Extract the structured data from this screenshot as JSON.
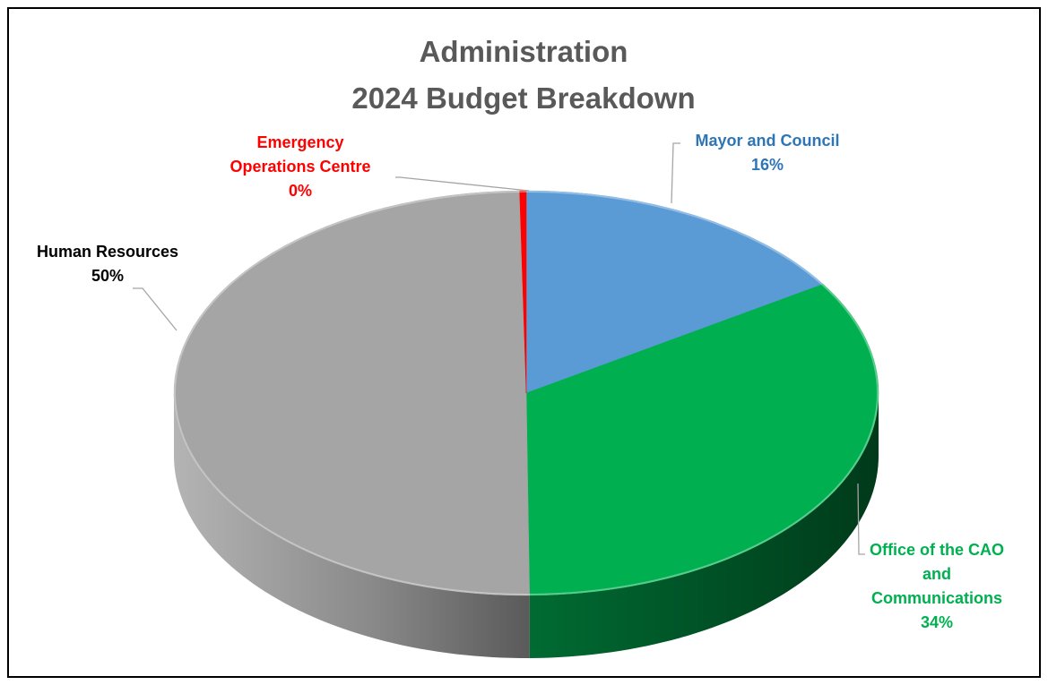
{
  "chart_data": {
    "type": "pie",
    "style": "3d",
    "title": [
      "Administration",
      "2024 Budget Breakdown"
    ],
    "slices": [
      {
        "label_lines": [
          "Mayor and Council"
        ],
        "percent_label": "16%",
        "value": 16,
        "color": "#5B9BD5",
        "label_color": "#2E75B6"
      },
      {
        "label_lines": [
          "Office of the CAO",
          "and",
          "Communications"
        ],
        "percent_label": "34%",
        "value": 34,
        "color": "#00B050",
        "label_color": "#00B050"
      },
      {
        "label_lines": [
          "Human Resources"
        ],
        "percent_label": "50%",
        "value": 50,
        "color": "#A5A5A5",
        "label_color": "#000000"
      },
      {
        "label_lines": [
          "Emergency",
          "Operations Centre"
        ],
        "percent_label": "0%",
        "value": 0.3,
        "color": "#FF0000",
        "label_color": "#FF0000"
      }
    ],
    "legend": "none",
    "leader_color": "#A5A5A5"
  }
}
